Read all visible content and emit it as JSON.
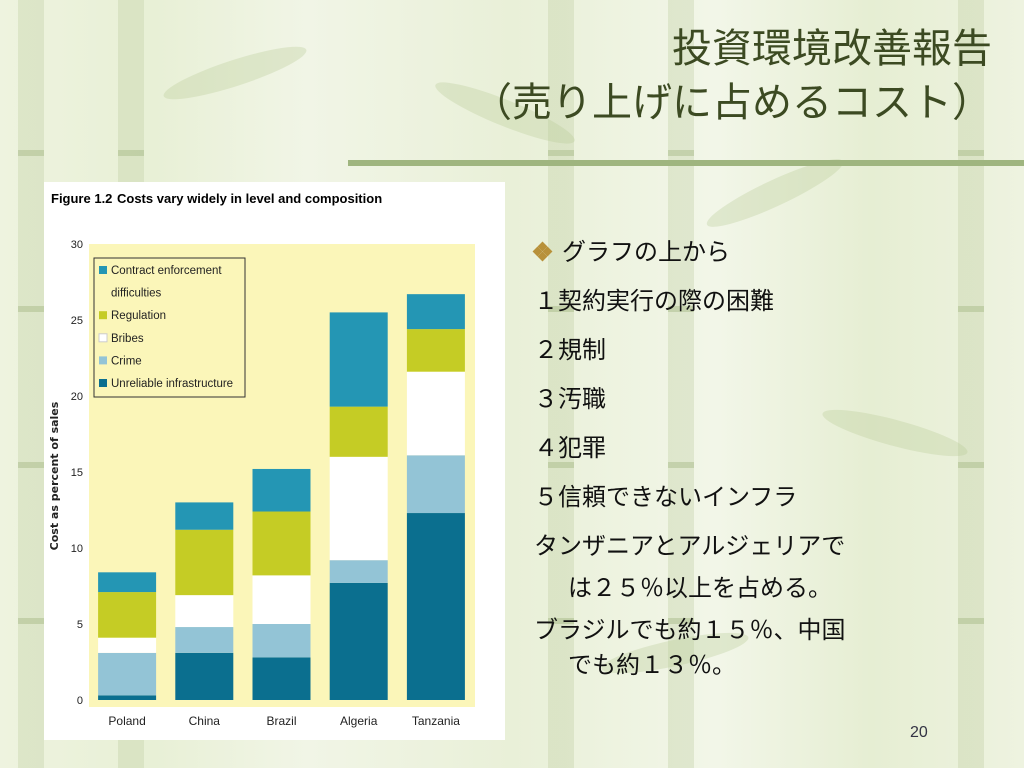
{
  "slide": {
    "title_line1": "投資環境改善報告",
    "title_line2": "（売り上げに占めるコスト）",
    "page_number": "20"
  },
  "bullets": {
    "heading": "グラフの上から",
    "items": [
      "１契約実行の際の困難",
      "２規制",
      "３汚職",
      "４犯罪",
      "５信頼できないインフラ"
    ],
    "note1_line1": "タンザニアとアルジェリアで",
    "note1_line2": "は２５％以上を占める。",
    "note2_line1": "ブラジルでも約１５％、中国",
    "note2_line2": "でも約１３％。"
  },
  "colors": {
    "plot_background": "#fbf6b9",
    "title_text": "#3c4a22",
    "bullet_diamond": "#b8913a"
  },
  "chart_data": {
    "type": "bar",
    "stacked": true,
    "figure_label": "Figure 1.2",
    "title": "Costs vary widely in level and composition",
    "ylabel": "Cost as percent of sales",
    "xlabel": "",
    "ylim": [
      0,
      30
    ],
    "yticks": [
      0,
      5,
      10,
      15,
      20,
      25,
      30
    ],
    "categories": [
      "Poland",
      "China",
      "Brazil",
      "Algeria",
      "Tanzania"
    ],
    "series": [
      {
        "name": "Unreliable infrastructure",
        "color": "#0b6f8f",
        "values": [
          0.3,
          3.1,
          2.8,
          7.7,
          12.3
        ]
      },
      {
        "name": "Crime",
        "color": "#93c4d6",
        "values": [
          2.8,
          1.7,
          2.2,
          1.5,
          3.8
        ]
      },
      {
        "name": "Bribes",
        "color": "#ffffff",
        "values": [
          1.0,
          2.1,
          3.2,
          6.8,
          5.5
        ]
      },
      {
        "name": "Regulation",
        "color": "#c5cc25",
        "values": [
          3.0,
          4.3,
          4.2,
          3.3,
          2.8
        ]
      },
      {
        "name": "Contract enforcement difficulties",
        "color": "#2496b4",
        "values": [
          1.3,
          1.8,
          2.8,
          6.2,
          2.3
        ]
      }
    ],
    "legend": {
      "position": "top-left",
      "order": [
        {
          "lines": [
            "Contract enforcement",
            "difficulties"
          ],
          "color": "#2496b4"
        },
        {
          "lines": [
            "Regulation"
          ],
          "color": "#c5cc25"
        },
        {
          "lines": [
            "Bribes"
          ],
          "color": "#ffffff"
        },
        {
          "lines": [
            "Crime"
          ],
          "color": "#93c4d6"
        },
        {
          "lines": [
            "Unreliable infrastructure"
          ],
          "color": "#0b6f8f"
        }
      ]
    },
    "grid": false
  }
}
